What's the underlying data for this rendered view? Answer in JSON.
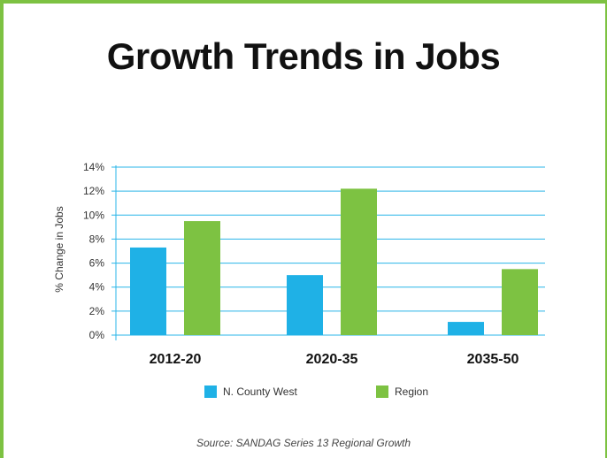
{
  "title": "Growth Trends in Jobs",
  "source": "Source: SANDAG Series 13 Regional Growth",
  "colors": {
    "frame": "#7dc242",
    "gridline": "#29b5e8"
  },
  "chart_data": {
    "type": "bar",
    "title": "Growth Trends in Jobs",
    "xlabel": "",
    "ylabel": "% Change in Jobs",
    "categories": [
      "2012-20",
      "2020-35",
      "2035-50"
    ],
    "series": [
      {
        "name": "N. County West",
        "color": "#1fb1e6",
        "values": [
          7.3,
          5.0,
          1.1
        ]
      },
      {
        "name": "Region",
        "color": "#7dc242",
        "values": [
          9.5,
          12.2,
          5.5
        ]
      }
    ],
    "ylim": [
      0,
      14
    ],
    "yticks": [
      0,
      2,
      4,
      6,
      8,
      10,
      12,
      14
    ],
    "ytick_labels": [
      "0%",
      "2%",
      "4%",
      "6%",
      "8%",
      "10%",
      "12%",
      "14%"
    ],
    "grid": true,
    "legend": "bottom"
  }
}
